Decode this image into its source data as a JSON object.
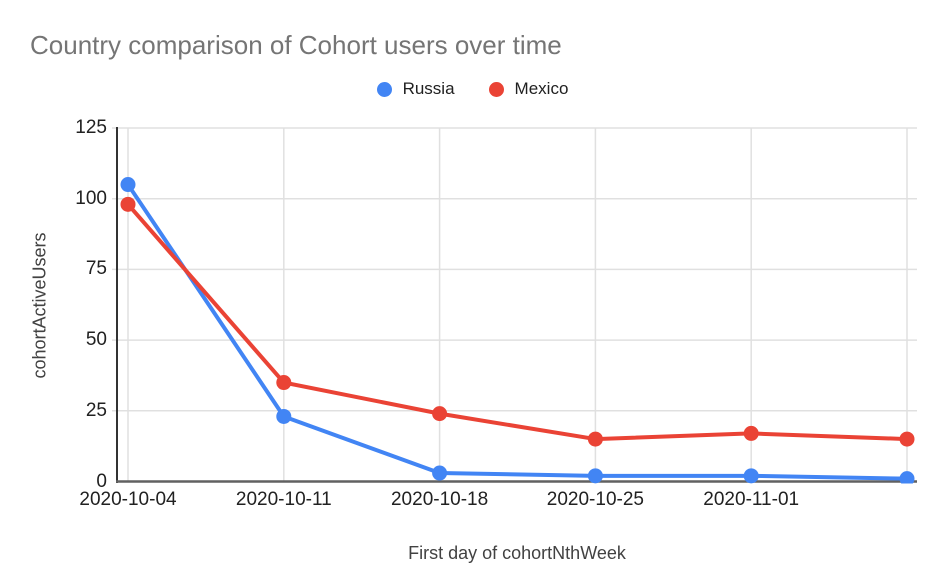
{
  "chart_data": {
    "type": "line",
    "title": "Country comparison of Cohort users over time",
    "xlabel": "First day of cohortNthWeek",
    "ylabel": "cohortActiveUsers",
    "categories": [
      "2020-10-04",
      "2020-10-11",
      "2020-10-18",
      "2020-10-25",
      "2020-11-01",
      ""
    ],
    "series": [
      {
        "name": "Russia",
        "color": "#4285F4",
        "values": [
          105,
          23,
          3,
          2,
          2,
          1
        ]
      },
      {
        "name": "Mexico",
        "color": "#EA4335",
        "values": [
          98,
          35,
          24,
          15,
          17,
          15
        ]
      }
    ],
    "ylim": [
      0,
      125
    ],
    "yticks": [
      0,
      25,
      50,
      75,
      100,
      125
    ],
    "grid": true,
    "legend_position": "top",
    "marker": "circle"
  },
  "colors": {
    "title_text": "#757575",
    "tick_text": "#212121",
    "axis_title_text": "#424242",
    "gridline": "#e0e0e0",
    "y_axis_line": "#333333",
    "x_axis_line": "#616161",
    "background": "#ffffff"
  }
}
